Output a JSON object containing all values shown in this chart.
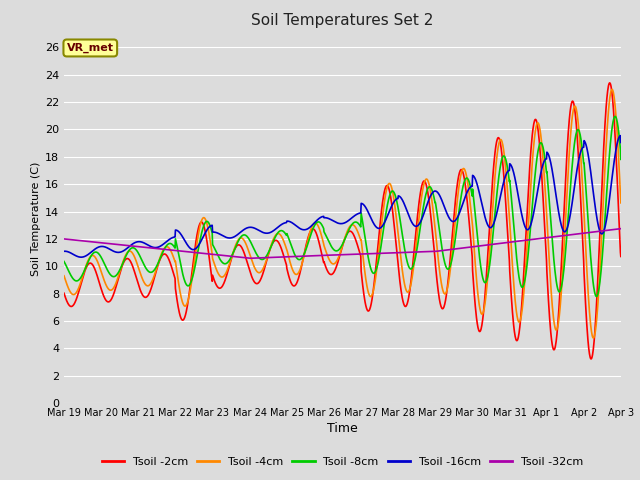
{
  "title": "Soil Temperatures Set 2",
  "xlabel": "Time",
  "ylabel": "Soil Temperature (C)",
  "annotation_text": "VR_met",
  "annotation_box_color": "#FFFF99",
  "annotation_border_color": "#888800",
  "ylim": [
    0,
    27
  ],
  "yticks": [
    0,
    2,
    4,
    6,
    8,
    10,
    12,
    14,
    16,
    18,
    20,
    22,
    24,
    26
  ],
  "bg_color": "#DCDCDC",
  "plot_bg_color": "#DCDCDC",
  "grid_color": "#FFFFFF",
  "series_colors": {
    "Tsoil -2cm": "#FF0000",
    "Tsoil -4cm": "#FF8800",
    "Tsoil -8cm": "#00CC00",
    "Tsoil -16cm": "#0000CC",
    "Tsoil -32cm": "#AA00AA"
  },
  "series_linewidth": 1.2,
  "xtick_labels": [
    "Mar 19",
    "Mar 20",
    "Mar 21",
    "Mar 22",
    "Mar 23",
    "Mar 24",
    "Mar 25",
    "Mar 26",
    "Mar 27",
    "Mar 28",
    "Mar 29",
    "Mar 30",
    "Mar 31",
    "Apr 1",
    "Apr 2",
    "Apr 3"
  ]
}
